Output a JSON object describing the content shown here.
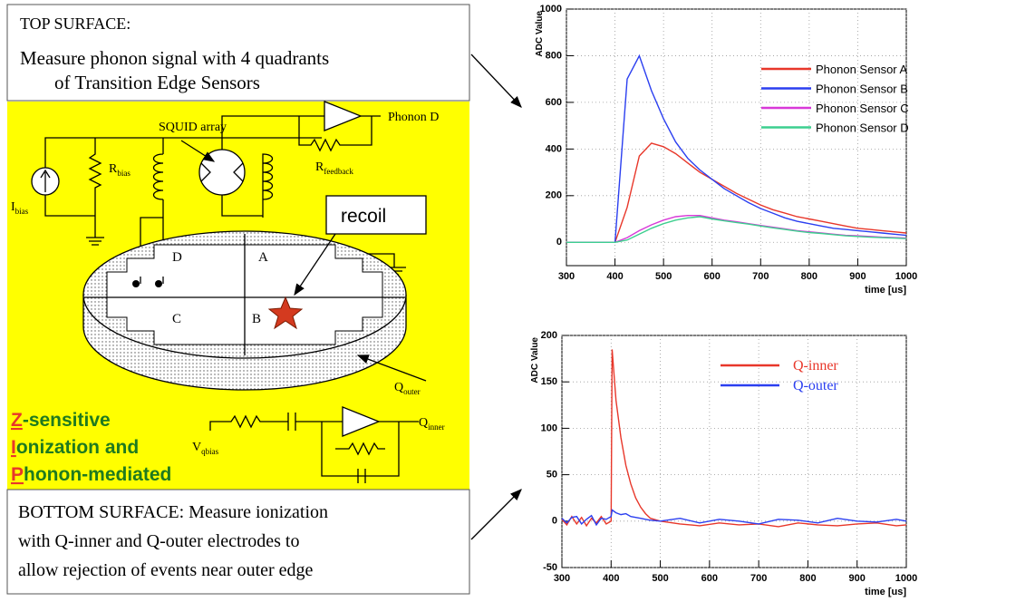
{
  "slide": {
    "top_box": {
      "title": "TOP SURFACE:",
      "line1": "Measure phonon signal with 4 quadrants",
      "line2": "of  Transition Edge Sensors"
    },
    "bottom_box": {
      "line1": "BOTTOM SURFACE: Measure ionization",
      "line2": "with Q-inner and Q-outer electrodes to",
      "line3": "allow rejection of events near outer edge"
    },
    "diagram": {
      "i_bias": {
        "main": "I",
        "sub": "bias"
      },
      "r_bias": {
        "main": "R",
        "sub": "bias"
      },
      "squid": "SQUID array",
      "phonon_d": "Phonon D",
      "r_feedback": {
        "main": "R",
        "sub": "feedback"
      },
      "recoil": "recoil",
      "quadrants": [
        "D",
        "A",
        "C",
        "B"
      ],
      "q_outer": {
        "main": "Q",
        "sub": "outer"
      },
      "q_inner": {
        "main": "Q",
        "sub": "inner"
      },
      "v_qbias": {
        "main": "V",
        "sub": "qbias"
      },
      "acronym": [
        {
          "initial": "Z",
          "rest": "-sensitive"
        },
        {
          "initial": "I",
          "rest": "onization and"
        },
        {
          "initial": "P",
          "rest": "honon-mediated"
        }
      ]
    }
  },
  "chart_data": [
    {
      "type": "line",
      "y_label": "ADC Value",
      "x_label": "time [us]",
      "x": [
        300,
        325,
        350,
        375,
        400,
        425,
        450,
        475,
        500,
        525,
        550,
        575,
        600,
        625,
        650,
        675,
        700,
        725,
        750,
        775,
        800,
        825,
        850,
        875,
        900,
        925,
        950,
        975,
        1000
      ],
      "series": [
        {
          "name": "Phonon Sensor A",
          "color": "#e8372a",
          "values": [
            0,
            0,
            0,
            0,
            0,
            150,
            370,
            425,
            410,
            380,
            340,
            300,
            270,
            240,
            210,
            185,
            160,
            140,
            125,
            110,
            100,
            90,
            80,
            70,
            60,
            55,
            50,
            45,
            40
          ]
        },
        {
          "name": "Phonon Sensor B",
          "color": "#2b3ff0",
          "values": [
            0,
            0,
            0,
            0,
            0,
            700,
            800,
            650,
            530,
            430,
            360,
            310,
            270,
            230,
            200,
            170,
            145,
            125,
            105,
            90,
            80,
            70,
            60,
            55,
            50,
            45,
            40,
            35,
            30
          ]
        },
        {
          "name": "Phonon Sensor C",
          "color": "#d838d8",
          "values": [
            0,
            0,
            0,
            0,
            0,
            20,
            50,
            75,
            95,
            110,
            115,
            115,
            105,
            95,
            88,
            80,
            72,
            65,
            58,
            50,
            45,
            40,
            35,
            30,
            28,
            25,
            22,
            20,
            18
          ]
        },
        {
          "name": "Phonon Sensor D",
          "color": "#3dcf8f",
          "values": [
            0,
            0,
            0,
            0,
            0,
            10,
            35,
            60,
            80,
            95,
            105,
            110,
            100,
            92,
            85,
            78,
            70,
            62,
            55,
            48,
            42,
            38,
            33,
            28,
            25,
            22,
            20,
            18,
            16
          ]
        }
      ],
      "xlim": [
        300,
        1000
      ],
      "ylim": [
        -100,
        1000
      ],
      "xticks": [
        300,
        400,
        500,
        600,
        700,
        800,
        900,
        1000
      ],
      "yticks": [
        0,
        200,
        400,
        600,
        800,
        1000
      ],
      "grid": true,
      "legend": "upper right"
    },
    {
      "type": "line",
      "y_label": "ADC Value",
      "x_label": "time [us]",
      "x": [
        300,
        310,
        320,
        330,
        340,
        350,
        360,
        370,
        380,
        390,
        400,
        402,
        410,
        420,
        430,
        440,
        450,
        460,
        470,
        480,
        500,
        540,
        580,
        620,
        660,
        700,
        740,
        780,
        820,
        860,
        900,
        940,
        980,
        1000
      ],
      "series": [
        {
          "name": "Q-inner",
          "color": "#e8372a",
          "values": [
            2,
            -4,
            5,
            -3,
            4,
            -5,
            3,
            -2,
            5,
            -3,
            0,
            185,
            130,
            90,
            60,
            40,
            25,
            15,
            8,
            3,
            0,
            -3,
            -5,
            -2,
            -4,
            -3,
            -6,
            -2,
            -4,
            -5,
            -3,
            -2,
            -5,
            -4
          ]
        },
        {
          "name": "Q-outer",
          "color": "#2b3ff0",
          "values": [
            3,
            -2,
            4,
            5,
            -3,
            2,
            6,
            -4,
            3,
            2,
            5,
            12,
            9,
            7,
            8,
            5,
            4,
            3,
            2,
            1,
            0,
            3,
            -2,
            2,
            0,
            -3,
            2,
            1,
            -2,
            3,
            0,
            -1,
            2,
            0
          ]
        }
      ],
      "xlim": [
        300,
        1000
      ],
      "ylim": [
        -50,
        200
      ],
      "xticks": [
        300,
        400,
        500,
        600,
        700,
        800,
        900,
        1000
      ],
      "yticks": [
        -50,
        0,
        50,
        100,
        150,
        200
      ],
      "grid": true,
      "legend": "upper right"
    }
  ]
}
